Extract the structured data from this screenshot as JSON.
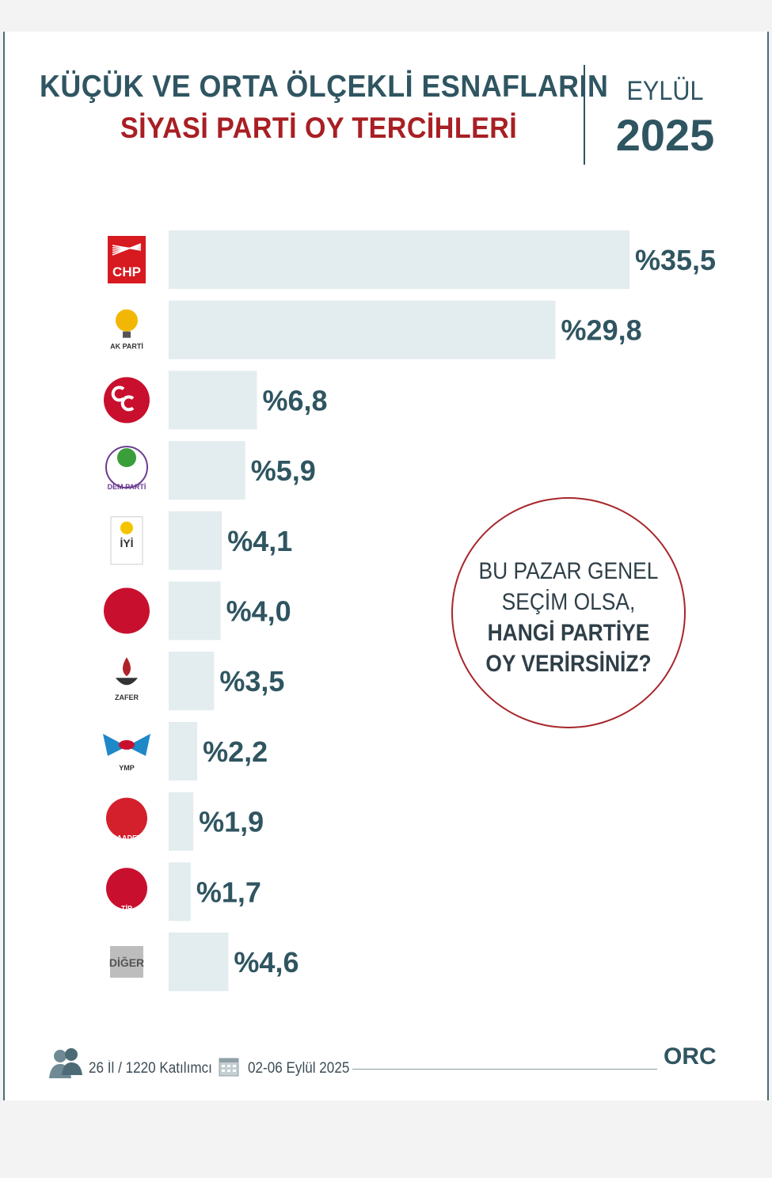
{
  "header": {
    "title_line1": "KÜÇÜK VE ORTA ÖLÇEKLİ ESNAFLARIN",
    "title_line2": "SİYASİ PARTİ OY TERCİHLERİ",
    "month": "EYLÜL",
    "year": "2025"
  },
  "question": {
    "line1": "BU PAZAR GENEL",
    "line2": "SEÇİM OLSA,",
    "line3": "HANGİ PARTİYE",
    "line4": "OY VERİRSİNİZ?"
  },
  "footer": {
    "sample": "26 İl / 1220 Katılımcı",
    "dates": "02-06 Eylül 2025",
    "brand": "ORC"
  },
  "colors": {
    "bar": "#e3ecef",
    "label": "#2f5561",
    "accent_red": "#a81f24"
  },
  "chart_data": {
    "type": "bar",
    "orientation": "horizontal",
    "categories": [
      "CHP",
      "AK PARTİ",
      "MHP",
      "DEM PARTİ",
      "İYİ PARTİ",
      "YENİDEN REFAH",
      "ZAFER PARTİSİ",
      "YMP",
      "SAADET",
      "TİP",
      "DİĞER"
    ],
    "logo_text": [
      "CHP",
      "AK PARTİ",
      "",
      "DEM PARTİ",
      "İYİ",
      "",
      "ZAFER",
      "YMP",
      "SAADET",
      "TİP",
      "DİĞER"
    ],
    "values": [
      35.5,
      29.8,
      6.8,
      5.9,
      4.1,
      4.0,
      3.5,
      2.2,
      1.9,
      1.7,
      4.6
    ],
    "value_labels": [
      "%35,5",
      "%29,8",
      "%6,8",
      "%5,9",
      "%4,1",
      "%4,0",
      "%3,5",
      "%2,2",
      "%1,9",
      "%1,7",
      "%4,6"
    ],
    "xlim": [
      0,
      35.5
    ],
    "title": "KÜÇÜK VE ORTA ÖLÇEKLİ ESNAFLARIN SİYASİ PARTİ OY TERCİHLERİ"
  }
}
